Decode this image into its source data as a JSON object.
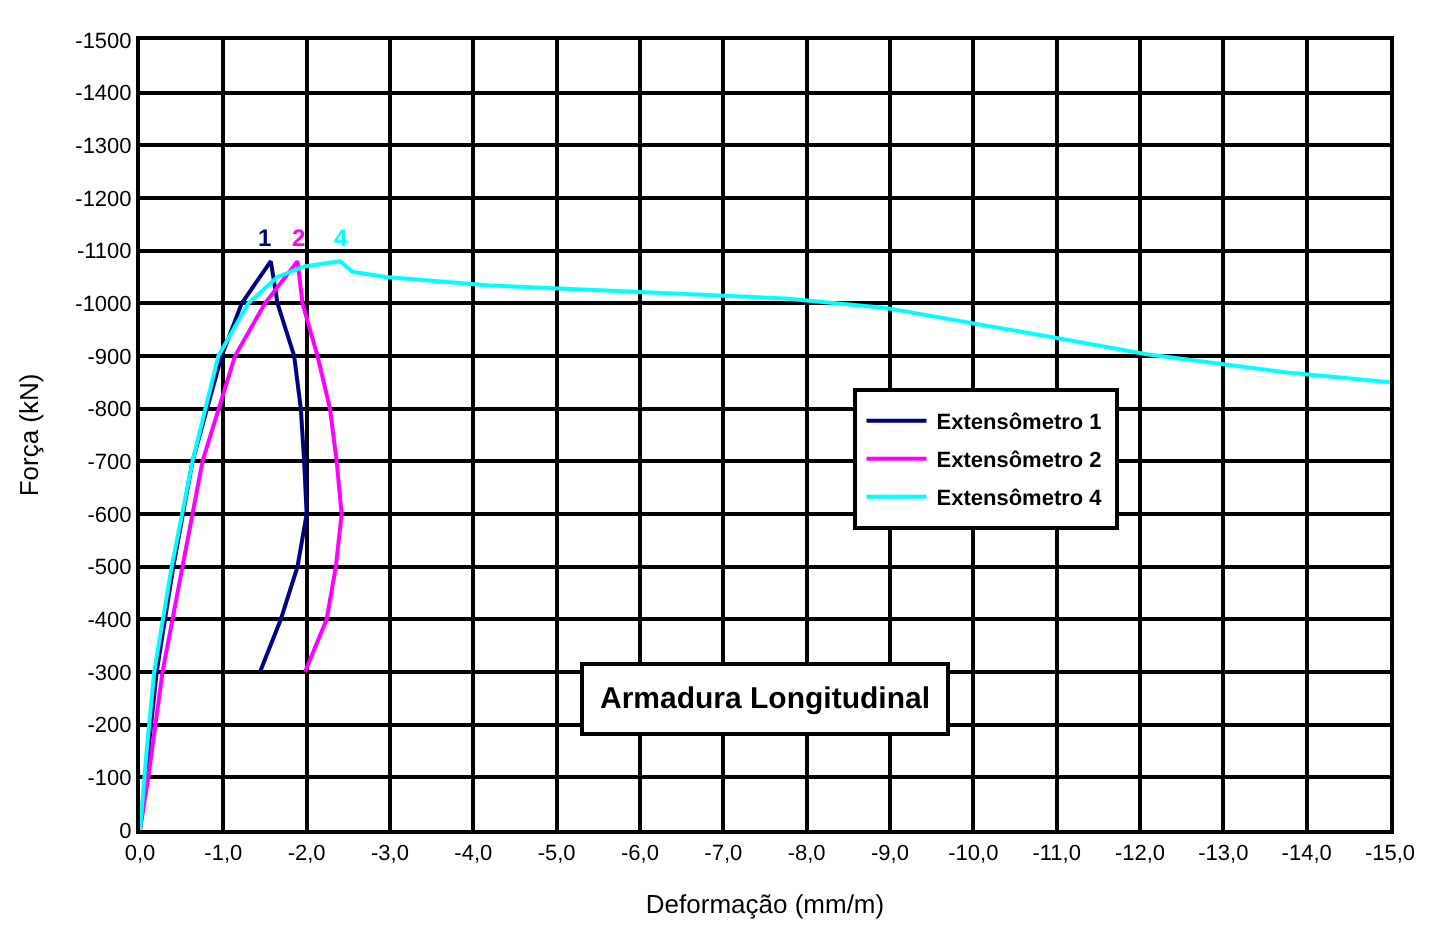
{
  "chart_data": {
    "type": "line",
    "xlabel": "Deformação (mm/m)",
    "ylabel": "Força (kN)",
    "xlim": [
      0,
      -15
    ],
    "ylim": [
      0,
      -1500
    ],
    "xticks": [
      {
        "value": 0,
        "label": "0,0"
      },
      {
        "value": -1,
        "label": "-1,0"
      },
      {
        "value": -2,
        "label": "-2,0"
      },
      {
        "value": -3,
        "label": "-3,0"
      },
      {
        "value": -4,
        "label": "-4,0"
      },
      {
        "value": -5,
        "label": "-5,0"
      },
      {
        "value": -6,
        "label": "-6,0"
      },
      {
        "value": -7,
        "label": "-7,0"
      },
      {
        "value": -8,
        "label": "-8,0"
      },
      {
        "value": -9,
        "label": "-9,0"
      },
      {
        "value": -10,
        "label": "-10,0"
      },
      {
        "value": -11,
        "label": "-11,0"
      },
      {
        "value": -12,
        "label": "-12,0"
      },
      {
        "value": -13,
        "label": "-13,0"
      },
      {
        "value": -14,
        "label": "-14,0"
      },
      {
        "value": -15,
        "label": "-15,0"
      }
    ],
    "yticks": [
      0,
      -100,
      -200,
      -300,
      -400,
      -500,
      -600,
      -700,
      -800,
      -900,
      -1000,
      -1100,
      -1200,
      -1300,
      -1400,
      -1500
    ],
    "grid": true,
    "legend": "right",
    "marker": "none",
    "line_style": "solid",
    "series": [
      {
        "name": "Extensômetro 1",
        "color": "#000080",
        "x": [
          0,
          -0.1,
          -0.2,
          -0.4,
          -0.63,
          -0.98,
          -1.22,
          -1.57,
          -1.65,
          -1.85,
          -1.93,
          -1.97,
          -2.0,
          -1.89,
          -1.69,
          -1.44
        ],
        "values": [
          0,
          -150,
          -300,
          -500,
          -700,
          -900,
          -1000,
          -1080,
          -1000,
          -900,
          -800,
          -700,
          -600,
          -500,
          -400,
          -300
        ]
      },
      {
        "name": "Extensômetro 2",
        "color": "#ff00ff",
        "x": [
          0,
          -0.1,
          -0.27,
          -0.51,
          -0.75,
          -1.14,
          -1.5,
          -1.89,
          -1.95,
          -2.13,
          -2.28,
          -2.36,
          -2.42,
          -2.35,
          -2.24,
          -1.98
        ],
        "values": [
          0,
          -100,
          -300,
          -500,
          -700,
          -900,
          -1000,
          -1080,
          -1000,
          -900,
          -800,
          -700,
          -600,
          -500,
          -400,
          -300
        ]
      },
      {
        "name": "Extensômetro 4",
        "color": "#00ffff",
        "x": [
          0,
          -0.08,
          -0.17,
          -0.38,
          -0.63,
          -0.94,
          -1.3,
          -1.65,
          -1.97,
          -2.4,
          -2.55,
          -2.95,
          -4.2,
          -6.07,
          -7.75,
          -8.95,
          -10.9,
          -12.1,
          -13.8,
          -15.0
        ],
        "values": [
          0,
          -150,
          -300,
          -500,
          -700,
          -900,
          -1000,
          -1050,
          -1070,
          -1080,
          -1060,
          -1050,
          -1034,
          -1021,
          -1009,
          -991,
          -937,
          -903,
          -868,
          -850
        ]
      }
    ],
    "annotations": [
      {
        "text": "1",
        "x": -1.5,
        "y": -1080
      },
      {
        "text": "2",
        "x": -1.9,
        "y": -1080
      },
      {
        "text": "4",
        "x": -2.4,
        "y": -1080
      },
      "Armadura Longitudinal"
    ]
  }
}
